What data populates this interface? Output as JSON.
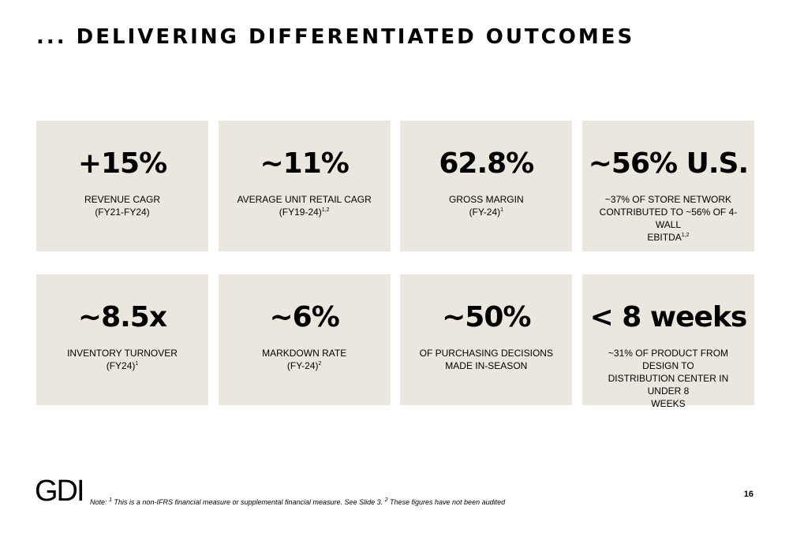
{
  "slide": {
    "title": "... DELIVERING DIFFERENTIATED OUTCOMES",
    "page_number": "16",
    "logo_text": "GDI",
    "footnote": {
      "prefix": "Note: ",
      "sup1": "1",
      "text1": " This is a non-IFRS financial measure or supplemental financial measure. See Slide 3. ",
      "sup2": "2",
      "text2": " These figures have not been audited"
    }
  },
  "tiles": [
    {
      "value": "+15%",
      "line1": "REVENUE CAGR",
      "line2": "(FY21-FY24)",
      "line3": "",
      "sup": ""
    },
    {
      "value": "~11%",
      "line1": "AVERAGE UNIT RETAIL CAGR",
      "line2": "(FY19-24)",
      "line3": "",
      "sup": "1,2"
    },
    {
      "value": "62.8%",
      "line1": "GROSS MARGIN",
      "line2": "(FY-24)",
      "line3": "",
      "sup": "1"
    },
    {
      "value": "~56% U.S.",
      "line1": "~37% OF STORE NETWORK",
      "line2": "CONTRIBUTED TO ~56% OF 4-WALL",
      "line3": "EBITDA",
      "sup": "1,2"
    },
    {
      "value": "~8.5x",
      "line1": "INVENTORY TURNOVER",
      "line2": "(FY24)",
      "line3": "",
      "sup": "1"
    },
    {
      "value": "~6%",
      "line1": "MARKDOWN RATE",
      "line2": "(FY-24)",
      "line3": "",
      "sup": "2"
    },
    {
      "value": "~50%",
      "line1": "OF PURCHASING DECISIONS",
      "line2": "MADE IN-SEASON",
      "line3": "",
      "sup": ""
    },
    {
      "value": "< 8 weeks",
      "line1": "~31% OF PRODUCT FROM DESIGN TO",
      "line2": "DISTRIBUTION CENTER IN UNDER 8",
      "line3": "WEEKS",
      "sup": ""
    }
  ]
}
